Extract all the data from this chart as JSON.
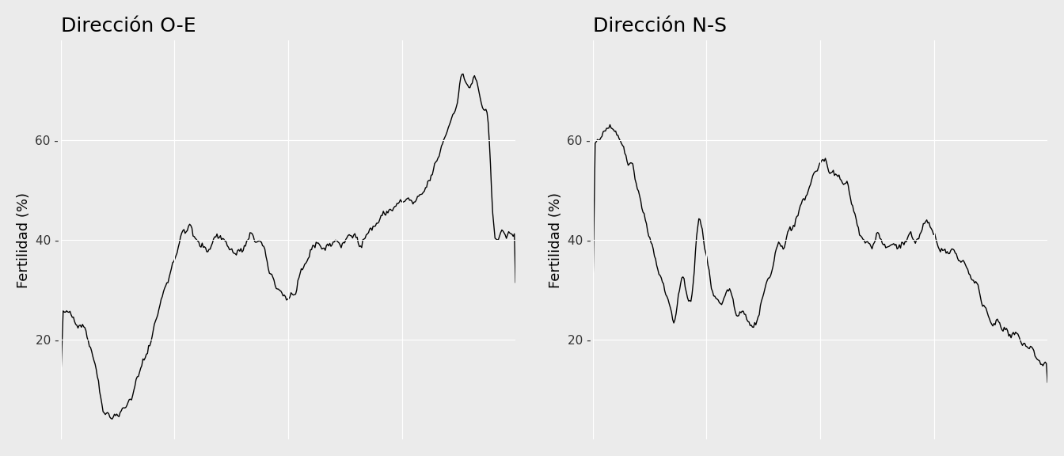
{
  "title1": "Dirección O-E",
  "title2": "Dirección N-S",
  "ylabel": "Fertilidad (%)",
  "panel_bg_color": "#EBEBEB",
  "fig_bg_color": "#EBEBEB",
  "line_color": "#000000",
  "line_width": 1.0,
  "ylim": [
    0,
    80
  ],
  "yticks": [
    20,
    40,
    60
  ],
  "title_fontsize": 18,
  "label_fontsize": 13,
  "tick_fontsize": 11,
  "grid_color": "#FFFFFF",
  "grid_linewidth": 0.8
}
